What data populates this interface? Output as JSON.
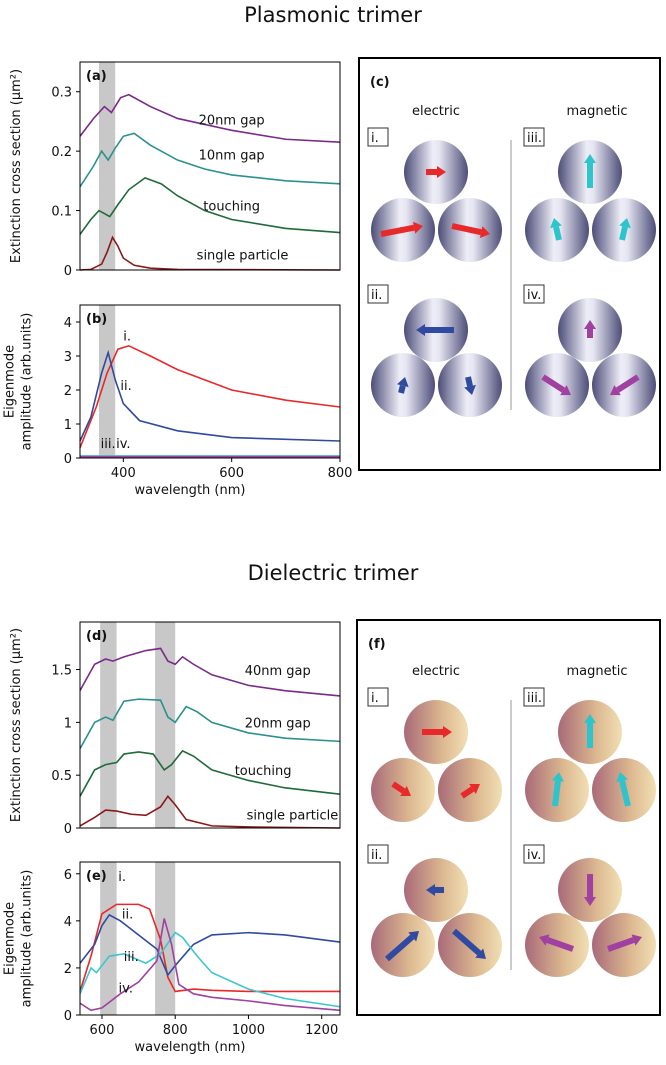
{
  "titles": [
    "Plasmonic trimer",
    "Dielectric trimer"
  ],
  "chart_data": [
    {
      "type": "line",
      "panel": "(a)",
      "ylabel": [
        "Extinction cross section (μm²)"
      ],
      "xlim": [
        320,
        800
      ],
      "ylim": [
        0,
        0.35
      ],
      "yticks": [
        0,
        0.1,
        0.2,
        0.3
      ],
      "bands": [
        [
          355,
          385
        ]
      ],
      "series": [
        {
          "name": "20nm gap",
          "color": "#7b2a8a",
          "x": [
            320,
            345,
            365,
            378,
            395,
            410,
            450,
            500,
            600,
            700,
            800
          ],
          "values": [
            0.225,
            0.255,
            0.275,
            0.265,
            0.29,
            0.295,
            0.275,
            0.255,
            0.235,
            0.22,
            0.215
          ]
        },
        {
          "name": "10nm gap",
          "color": "#2a9190",
          "x": [
            320,
            345,
            360,
            372,
            385,
            400,
            420,
            450,
            500,
            550,
            600,
            700,
            800
          ],
          "values": [
            0.14,
            0.175,
            0.2,
            0.185,
            0.205,
            0.225,
            0.23,
            0.21,
            0.185,
            0.17,
            0.16,
            0.15,
            0.145
          ]
        },
        {
          "name": "touching",
          "color": "#1f6a3a",
          "x": [
            320,
            340,
            355,
            365,
            375,
            390,
            410,
            440,
            470,
            500,
            550,
            600,
            700,
            800
          ],
          "values": [
            0.06,
            0.085,
            0.1,
            0.095,
            0.09,
            0.11,
            0.135,
            0.155,
            0.145,
            0.125,
            0.1,
            0.085,
            0.07,
            0.063
          ]
        },
        {
          "name": "single particle",
          "color": "#8a1a1a",
          "x": [
            320,
            340,
            360,
            370,
            380,
            390,
            400,
            420,
            450,
            500,
            800
          ],
          "values": [
            0,
            0.001,
            0.01,
            0.03,
            0.055,
            0.04,
            0.02,
            0.008,
            0.003,
            0.001,
            0
          ]
        }
      ]
    },
    {
      "type": "line",
      "panel": "(b)",
      "ylabel": [
        "Eigenmode",
        "amplitude (arb.units)"
      ],
      "xlabel": "wavelength (nm)",
      "xlim": [
        320,
        800
      ],
      "ylim": [
        0,
        4.5
      ],
      "yticks": [
        0,
        1,
        2,
        3,
        4
      ],
      "xticks": [
        400,
        600,
        800
      ],
      "bands": [
        [
          355,
          385
        ]
      ],
      "series": [
        {
          "name": "i.",
          "color": "#e8292a",
          "x": [
            320,
            350,
            370,
            390,
            410,
            450,
            500,
            600,
            700,
            800
          ],
          "values": [
            0.3,
            1.5,
            2.5,
            3.2,
            3.3,
            3.0,
            2.6,
            2.0,
            1.7,
            1.5
          ]
        },
        {
          "name": "ii.",
          "color": "#2f4aa0",
          "x": [
            320,
            340,
            360,
            372,
            385,
            400,
            430,
            500,
            600,
            800
          ],
          "values": [
            0.5,
            1.2,
            2.5,
            3.1,
            2.3,
            1.6,
            1.1,
            0.8,
            0.6,
            0.5
          ]
        },
        {
          "name": "iii.",
          "color": "#3cc6d0",
          "x": [
            320,
            800
          ],
          "values": [
            0.06,
            0.06
          ]
        },
        {
          "name": "iv.",
          "color": "#a040a0",
          "x": [
            320,
            800
          ],
          "values": [
            0.04,
            0.04
          ]
        }
      ]
    },
    {
      "type": "line",
      "panel": "(d)",
      "ylabel": [
        "Extinction cross section (μm²)"
      ],
      "xlim": [
        540,
        1250
      ],
      "ylim": [
        0,
        1.95
      ],
      "yticks": [
        0,
        0.5,
        1,
        1.5
      ],
      "bands": [
        [
          595,
          640
        ],
        [
          745,
          800
        ]
      ],
      "series": [
        {
          "name": "40nm gap",
          "color": "#7b2a8a",
          "x": [
            540,
            580,
            610,
            630,
            660,
            720,
            760,
            780,
            800,
            820,
            850,
            900,
            1000,
            1100,
            1250
          ],
          "values": [
            1.3,
            1.55,
            1.6,
            1.58,
            1.62,
            1.68,
            1.7,
            1.58,
            1.55,
            1.62,
            1.55,
            1.45,
            1.35,
            1.3,
            1.25
          ]
        },
        {
          "name": "20nm gap",
          "color": "#2a9190",
          "x": [
            540,
            580,
            610,
            630,
            660,
            700,
            760,
            780,
            800,
            830,
            860,
            900,
            1000,
            1100,
            1250
          ],
          "values": [
            0.75,
            1.0,
            1.05,
            1.02,
            1.2,
            1.22,
            1.21,
            1.05,
            1.0,
            1.15,
            1.1,
            1.0,
            0.9,
            0.85,
            0.82
          ]
        },
        {
          "name": "touching",
          "color": "#1f6a3a",
          "x": [
            540,
            580,
            610,
            640,
            660,
            700,
            740,
            770,
            790,
            820,
            850,
            900,
            1000,
            1100,
            1250
          ],
          "values": [
            0.3,
            0.55,
            0.6,
            0.62,
            0.7,
            0.72,
            0.7,
            0.55,
            0.6,
            0.73,
            0.68,
            0.55,
            0.45,
            0.38,
            0.32
          ]
        },
        {
          "name": "single particle",
          "color": "#8a1a1a",
          "x": [
            540,
            580,
            610,
            640,
            680,
            720,
            760,
            780,
            800,
            830,
            900,
            1000,
            1250
          ],
          "values": [
            0.02,
            0.1,
            0.17,
            0.16,
            0.13,
            0.12,
            0.2,
            0.3,
            0.22,
            0.08,
            0.02,
            0.01,
            0
          ]
        }
      ]
    },
    {
      "type": "line",
      "panel": "(e)",
      "ylabel": [
        "Eigenmode",
        "amplitude (arb.units)"
      ],
      "xlabel": "wavelength (nm)",
      "xlim": [
        540,
        1250
      ],
      "ylim": [
        0,
        6.5
      ],
      "yticks": [
        0,
        2,
        4,
        6
      ],
      "xticks": [
        600,
        800,
        1000,
        1200
      ],
      "bands": [
        [
          595,
          640
        ],
        [
          745,
          800
        ]
      ],
      "series": [
        {
          "name": "i.",
          "color": "#e8292a",
          "x": [
            540,
            570,
            600,
            640,
            700,
            730,
            760,
            780,
            800,
            850,
            900,
            1000,
            1250
          ],
          "values": [
            1,
            2.5,
            4.3,
            4.7,
            4.7,
            4.5,
            3.2,
            1.6,
            1.0,
            1.1,
            1.05,
            1.0,
            1.0
          ]
        },
        {
          "name": "ii.",
          "color": "#2f4aa0",
          "x": [
            540,
            580,
            600,
            620,
            650,
            700,
            750,
            780,
            800,
            850,
            900,
            1000,
            1100,
            1250
          ],
          "values": [
            2.2,
            3.0,
            3.8,
            4.25,
            4.0,
            3.4,
            2.8,
            1.7,
            2.1,
            3.0,
            3.4,
            3.5,
            3.4,
            3.1
          ]
        },
        {
          "name": "iii.",
          "color": "#3cc6d0",
          "x": [
            540,
            570,
            585,
            620,
            660,
            720,
            760,
            800,
            820,
            860,
            900,
            1000,
            1100,
            1250
          ],
          "values": [
            0.9,
            2.0,
            1.8,
            2.5,
            2.6,
            2.2,
            2.6,
            3.5,
            3.3,
            2.5,
            1.8,
            1.1,
            0.7,
            0.35
          ]
        },
        {
          "name": "iv.",
          "color": "#a040a0",
          "x": [
            540,
            570,
            600,
            650,
            700,
            750,
            770,
            790,
            810,
            850,
            900,
            1000,
            1100,
            1250
          ],
          "values": [
            0.5,
            0.2,
            0.3,
            0.9,
            1.4,
            2.3,
            4.1,
            3.0,
            1.3,
            0.9,
            0.75,
            0.6,
            0.4,
            0.2
          ]
        }
      ]
    }
  ],
  "diagrams": [
    {
      "label": "(c)",
      "columns": [
        "electric",
        "magnetic"
      ],
      "modes": [
        "i.",
        "ii.",
        "iii.",
        "iv."
      ]
    },
    {
      "label": "(f)",
      "columns": [
        "electric",
        "magnetic"
      ],
      "modes": [
        "i.",
        "ii.",
        "iii.",
        "iv."
      ]
    }
  ]
}
